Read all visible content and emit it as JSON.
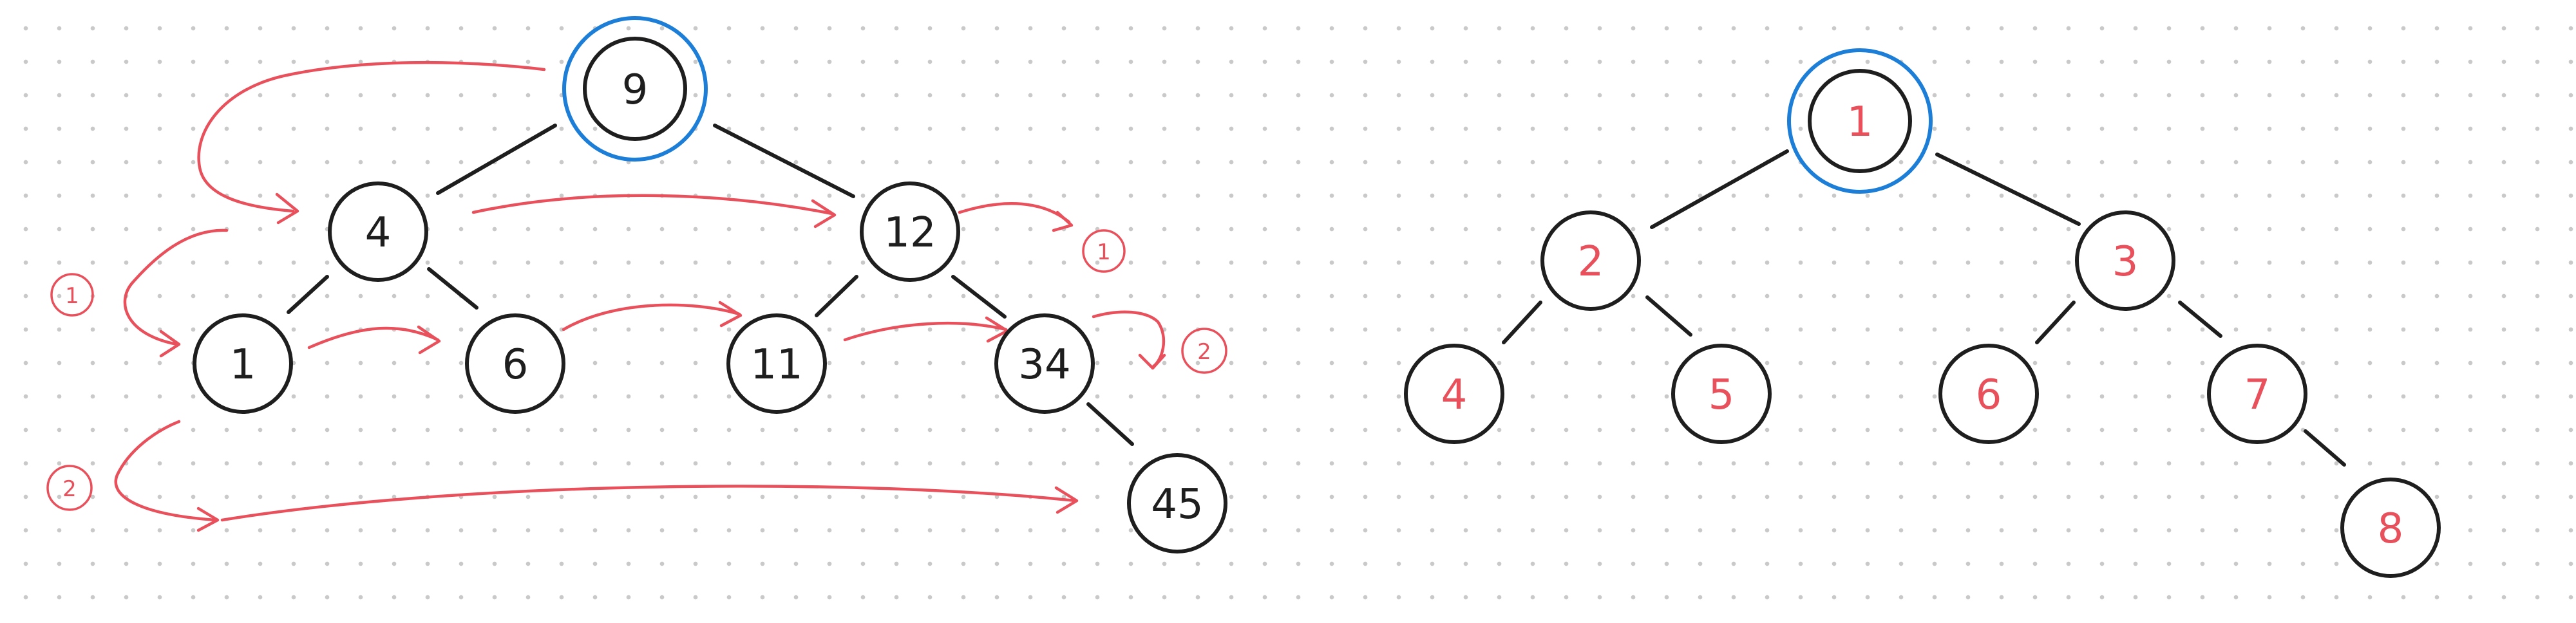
{
  "colors": {
    "ink": "#1e1e1e",
    "accent_red": "#e8505b",
    "root_ring_blue": "#1c7ed6",
    "grid_dot": "#c9c9c9",
    "background": "#ffffff"
  },
  "left_tree": {
    "nodes": [
      {
        "id": "n9",
        "label": "9",
        "root": true
      },
      {
        "id": "n4",
        "label": "4"
      },
      {
        "id": "n12",
        "label": "12"
      },
      {
        "id": "n1",
        "label": "1"
      },
      {
        "id": "n6",
        "label": "6"
      },
      {
        "id": "n11",
        "label": "11"
      },
      {
        "id": "n34",
        "label": "34"
      },
      {
        "id": "n45",
        "label": "45"
      }
    ],
    "markers": [
      "1",
      "1",
      "2",
      "2"
    ]
  },
  "right_tree": {
    "nodes": [
      {
        "id": "m1",
        "label": "1",
        "root": true
      },
      {
        "id": "m2",
        "label": "2"
      },
      {
        "id": "m3",
        "label": "3"
      },
      {
        "id": "m4",
        "label": "4"
      },
      {
        "id": "m5",
        "label": "5"
      },
      {
        "id": "m6",
        "label": "6"
      },
      {
        "id": "m7",
        "label": "7"
      },
      {
        "id": "m8",
        "label": "8"
      }
    ]
  }
}
